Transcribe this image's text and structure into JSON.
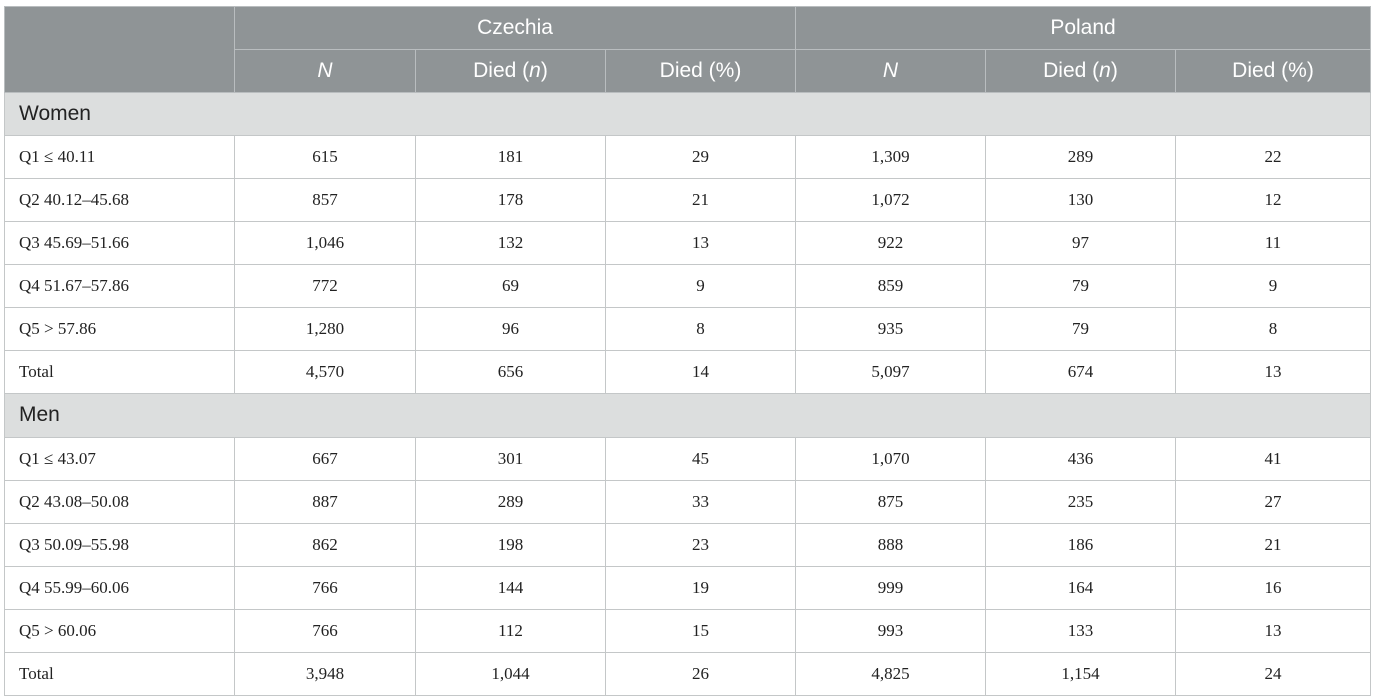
{
  "header": {
    "countries": [
      "Czechia",
      "Poland"
    ],
    "columns": [
      {
        "pre": "",
        "ital": "N",
        "post": ""
      },
      {
        "pre": "Died (",
        "ital": "n",
        "post": ")"
      },
      {
        "pre": "Died (%)",
        "ital": "",
        "post": ""
      }
    ]
  },
  "sections": [
    {
      "title": "Women",
      "rows": [
        {
          "label": "Q1 ≤ 40.11",
          "values": [
            "615",
            "181",
            "29",
            "1,309",
            "289",
            "22"
          ]
        },
        {
          "label": "Q2 40.12–45.68",
          "values": [
            "857",
            "178",
            "21",
            "1,072",
            "130",
            "12"
          ]
        },
        {
          "label": "Q3 45.69–51.66",
          "values": [
            "1,046",
            "132",
            "13",
            "922",
            "97",
            "11"
          ]
        },
        {
          "label": "Q4 51.67–57.86",
          "values": [
            "772",
            "69",
            "9",
            "859",
            "79",
            "9"
          ]
        },
        {
          "label": "Q5 > 57.86",
          "values": [
            "1,280",
            "96",
            "8",
            "935",
            "79",
            "8"
          ]
        },
        {
          "label": "Total",
          "values": [
            "4,570",
            "656",
            "14",
            "5,097",
            "674",
            "13"
          ]
        }
      ]
    },
    {
      "title": "Men",
      "rows": [
        {
          "label": "Q1 ≤ 43.07",
          "values": [
            "667",
            "301",
            "45",
            "1,070",
            "436",
            "41"
          ]
        },
        {
          "label": "Q2 43.08–50.08",
          "values": [
            "887",
            "289",
            "33",
            "875",
            "235",
            "27"
          ]
        },
        {
          "label": "Q3 50.09–55.98",
          "values": [
            "862",
            "198",
            "23",
            "888",
            "186",
            "21"
          ]
        },
        {
          "label": "Q4 55.99–60.06",
          "values": [
            "766",
            "144",
            "19",
            "999",
            "164",
            "16"
          ]
        },
        {
          "label": "Q5 > 60.06",
          "values": [
            "766",
            "112",
            "15",
            "993",
            "133",
            "13"
          ]
        },
        {
          "label": "Total",
          "values": [
            "3,948",
            "1,044",
            "26",
            "4,825",
            "1,154",
            "24"
          ]
        }
      ]
    }
  ]
}
